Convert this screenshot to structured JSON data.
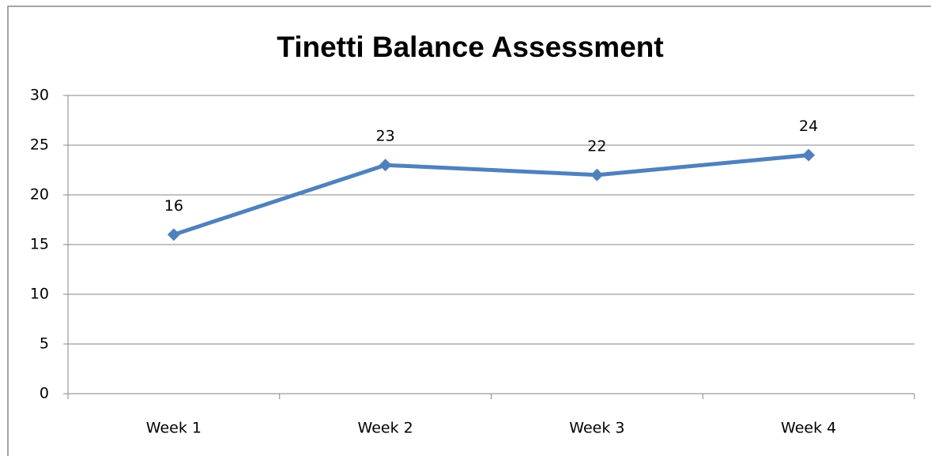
{
  "chart_data": {
    "type": "line",
    "title": "Tinetti Balance Assessment",
    "categories": [
      "Week 1",
      "Week 2",
      "Week 3",
      "Week 4"
    ],
    "series": [
      {
        "name": "Tinetti Balance Assessment",
        "color": "#4f81bd",
        "values": [
          16,
          23,
          22,
          24
        ]
      }
    ],
    "ylim": [
      0,
      30
    ],
    "yticks": [
      0,
      5,
      10,
      15,
      20,
      25,
      30
    ],
    "grid": true,
    "data_labels": true
  }
}
